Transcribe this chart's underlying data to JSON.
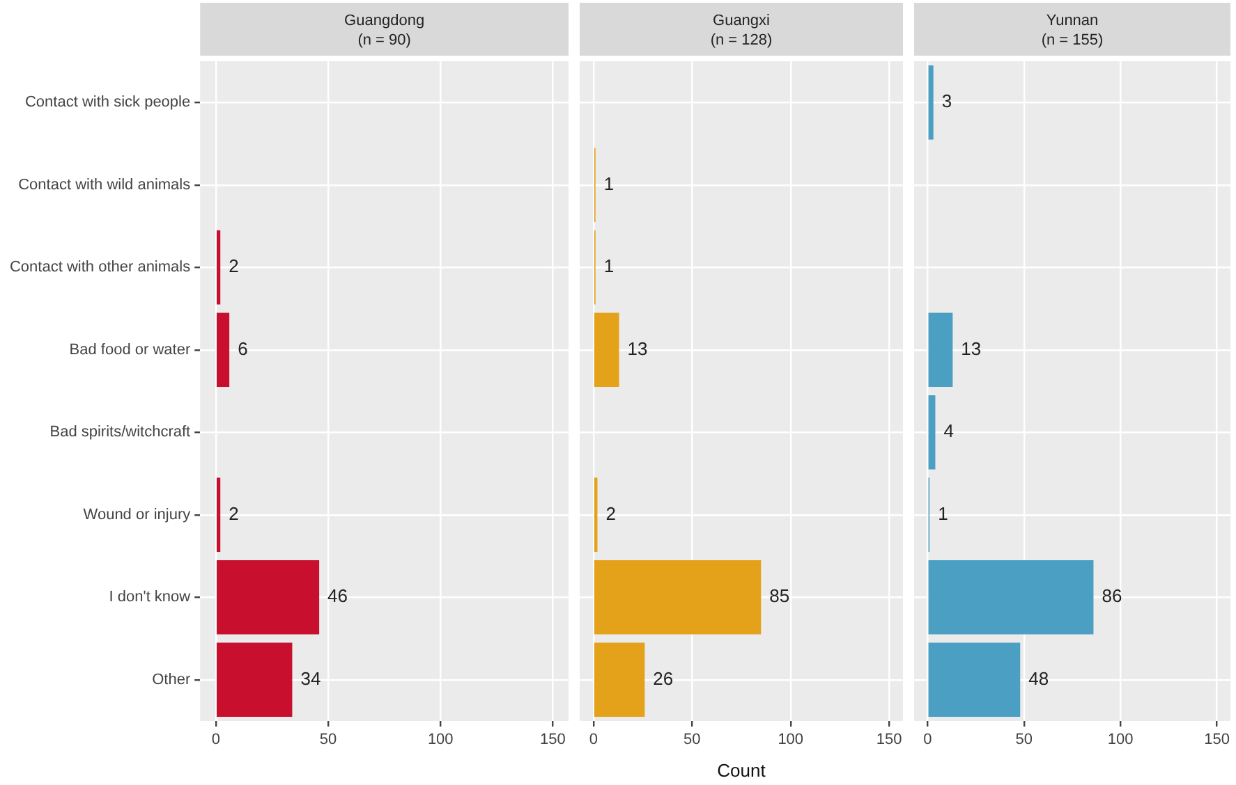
{
  "chart_data": [
    {
      "type": "bar",
      "orientation": "horizontal",
      "title": "Guangdong",
      "subtitle": "(n = 90)",
      "categories": [
        "Contact with sick people",
        "Contact with wild animals",
        "Contact with other animals",
        "Bad food or water",
        "Bad spirits/witchcraft",
        "Wound or injury",
        "I don't know",
        "Other"
      ],
      "values": [
        null,
        null,
        2,
        6,
        null,
        2,
        46,
        34
      ],
      "color": "#c8102e",
      "xlim": [
        -7,
        157
      ],
      "xticks": [
        0,
        50,
        100,
        150
      ],
      "grid": true,
      "data_labels": true
    },
    {
      "type": "bar",
      "orientation": "horizontal",
      "title": "Guangxi",
      "subtitle": "(n = 128)",
      "xlabel": "Count",
      "categories": [
        null,
        null,
        null,
        null,
        null,
        null,
        null,
        null
      ],
      "values": [
        null,
        1,
        1,
        13,
        null,
        2,
        85,
        26
      ],
      "color": "#e3a21a",
      "xlim": [
        -7,
        157
      ],
      "xticks": [
        0,
        50,
        100,
        150
      ],
      "grid": true,
      "data_labels": true,
      "tick_labels": "x"
    },
    {
      "type": "bar",
      "orientation": "horizontal",
      "title": "Yunnan",
      "subtitle": "(n = 155)",
      "categories": [
        null,
        null,
        null,
        null,
        null,
        null,
        null,
        null
      ],
      "values": [
        3,
        null,
        null,
        13,
        4,
        1,
        86,
        48
      ],
      "color": "#4a9fc2",
      "xlim": [
        -7,
        157
      ],
      "xticks": [
        0,
        50,
        100,
        150
      ],
      "grid": true,
      "data_labels": true,
      "tick_labels": "x"
    }
  ]
}
